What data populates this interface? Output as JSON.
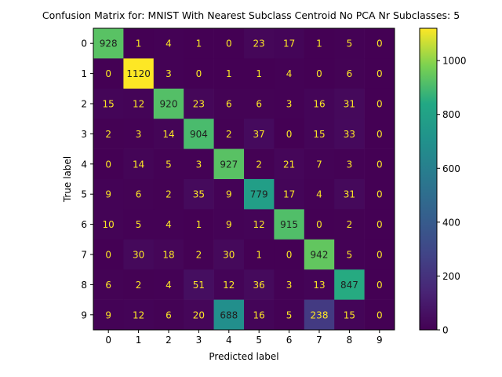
{
  "chart_data": {
    "type": "heatmap",
    "title": "Confusion Matrix for: MNIST With Nearest Subclass Centroid No PCA Nr Subclasses: 5",
    "xlabel": "Predicted label",
    "ylabel": "True label",
    "x_categories": [
      "0",
      "1",
      "2",
      "3",
      "4",
      "5",
      "6",
      "7",
      "8",
      "9"
    ],
    "y_categories": [
      "0",
      "1",
      "2",
      "3",
      "4",
      "5",
      "6",
      "7",
      "8",
      "9"
    ],
    "values": [
      [
        928,
        1,
        4,
        1,
        0,
        23,
        17,
        1,
        5,
        0
      ],
      [
        0,
        1120,
        3,
        0,
        1,
        1,
        4,
        0,
        6,
        0
      ],
      [
        15,
        12,
        920,
        23,
        6,
        6,
        3,
        16,
        31,
        0
      ],
      [
        2,
        3,
        14,
        904,
        2,
        37,
        0,
        15,
        33,
        0
      ],
      [
        0,
        14,
        5,
        3,
        927,
        2,
        21,
        7,
        3,
        0
      ],
      [
        9,
        6,
        2,
        35,
        9,
        779,
        17,
        4,
        31,
        0
      ],
      [
        10,
        5,
        4,
        1,
        9,
        12,
        915,
        0,
        2,
        0
      ],
      [
        0,
        30,
        18,
        2,
        30,
        1,
        0,
        942,
        5,
        0
      ],
      [
        6,
        2,
        4,
        51,
        12,
        36,
        3,
        13,
        847,
        0
      ],
      [
        9,
        12,
        6,
        20,
        688,
        16,
        5,
        238,
        15,
        0
      ]
    ],
    "color_range": [
      0,
      1120
    ],
    "colormap": "viridis",
    "colorbar_ticks": [
      0,
      200,
      400,
      600,
      800,
      1000
    ],
    "grid": false
  }
}
